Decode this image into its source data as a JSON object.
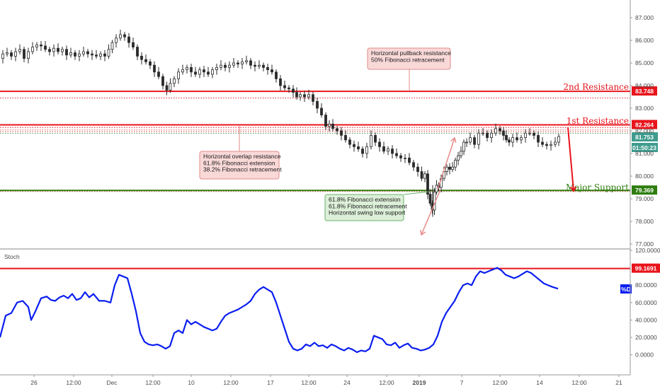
{
  "chart_data": [
    {
      "type": "candlestick",
      "ylim": [
        77.0,
        87.0
      ],
      "y_ticks": [
        "87.000",
        "86.000",
        "85.000",
        "84.000",
        "83.000",
        "82.000",
        "81.000",
        "80.000",
        "79.000",
        "78.000",
        "77.000"
      ],
      "y_tick_values": [
        87,
        86,
        85,
        84,
        83,
        82,
        81,
        80,
        79,
        78,
        77
      ],
      "x_ticks": [
        "26",
        "12:00",
        "Dec",
        "12:00",
        "10",
        "12:00",
        "17",
        "12:00",
        "24",
        "12:00",
        "2019",
        "7",
        "12:00",
        "14",
        "12:00",
        "21"
      ],
      "price_series": [
        [
          0,
          85.2
        ],
        [
          6,
          85.4
        ],
        [
          12,
          85.45
        ],
        [
          18,
          85.3
        ],
        [
          24,
          85.5
        ],
        [
          30,
          85.6
        ],
        [
          36,
          85.2
        ],
        [
          42,
          85.5
        ],
        [
          48,
          85.7
        ],
        [
          54,
          85.8
        ],
        [
          60,
          85.75
        ],
        [
          66,
          85.6
        ],
        [
          72,
          85.5
        ],
        [
          78,
          85.65
        ],
        [
          84,
          85.5
        ],
        [
          90,
          85.6
        ],
        [
          96,
          85.35
        ],
        [
          102,
          85.45
        ],
        [
          108,
          85.3
        ],
        [
          114,
          85.4
        ],
        [
          120,
          85.5
        ],
        [
          126,
          85.4
        ],
        [
          132,
          85.35
        ],
        [
          138,
          85.3
        ],
        [
          144,
          85.4
        ],
        [
          150,
          85.3
        ],
        [
          155,
          85.6
        ],
        [
          160,
          85.9
        ],
        [
          166,
          86.1
        ],
        [
          172,
          86.25
        ],
        [
          178,
          86.15
        ],
        [
          184,
          85.9
        ],
        [
          190,
          85.7
        ],
        [
          196,
          85.3
        ],
        [
          202,
          85.15
        ],
        [
          208,
          85.05
        ],
        [
          214,
          84.9
        ],
        [
          220,
          84.6
        ],
        [
          226,
          84.4
        ],
        [
          232,
          84.0
        ],
        [
          237,
          83.8
        ],
        [
          242,
          84.1
        ],
        [
          248,
          84.3
        ],
        [
          254,
          84.6
        ],
        [
          260,
          84.7
        ],
        [
          266,
          84.8
        ],
        [
          272,
          84.6
        ],
        [
          278,
          84.5
        ],
        [
          284,
          84.7
        ],
        [
          290,
          84.6
        ],
        [
          296,
          84.5
        ],
        [
          302,
          84.7
        ],
        [
          308,
          84.8
        ],
        [
          314,
          84.9
        ],
        [
          320,
          84.8
        ],
        [
          326,
          84.9
        ],
        [
          332,
          85.0
        ],
        [
          338,
          84.95
        ],
        [
          344,
          85.05
        ],
        [
          350,
          85.1
        ],
        [
          356,
          84.9
        ],
        [
          362,
          84.85
        ],
        [
          368,
          84.9
        ],
        [
          374,
          84.8
        ],
        [
          380,
          84.7
        ],
        [
          386,
          84.6
        ],
        [
          392,
          84.3
        ],
        [
          398,
          84.0
        ],
        [
          404,
          83.9
        ],
        [
          410,
          83.85
        ],
        [
          416,
          83.7
        ],
        [
          420,
          83.5
        ],
        [
          426,
          83.6
        ],
        [
          432,
          83.5
        ],
        [
          438,
          83.6
        ],
        [
          444,
          83.3
        ],
        [
          450,
          83.0
        ],
        [
          456,
          82.7
        ],
        [
          462,
          82.2
        ],
        [
          466,
          82.3
        ],
        [
          472,
          82.1
        ],
        [
          478,
          82.0
        ],
        [
          484,
          81.8
        ],
        [
          490,
          81.6
        ],
        [
          496,
          81.4
        ],
        [
          502,
          81.3
        ],
        [
          508,
          81.2
        ],
        [
          514,
          81.0
        ],
        [
          520,
          81.3
        ],
        [
          526,
          81.8
        ],
        [
          532,
          81.5
        ],
        [
          538,
          81.3
        ],
        [
          544,
          81.1
        ],
        [
          550,
          81.2
        ],
        [
          556,
          81.0
        ],
        [
          562,
          80.9
        ],
        [
          568,
          80.8
        ],
        [
          574,
          80.8
        ],
        [
          580,
          80.6
        ],
        [
          586,
          80.4
        ],
        [
          592,
          80.2
        ],
        [
          597,
          79.9
        ],
        [
          601,
          80.1
        ],
        [
          605,
          79.2
        ],
        [
          608,
          78.8
        ],
        [
          611,
          78.5
        ],
        [
          614,
          79.3
        ],
        [
          617,
          79.6
        ],
        [
          620,
          79.5
        ],
        [
          624,
          79.9
        ],
        [
          628,
          80.2
        ],
        [
          632,
          80.4
        ],
        [
          636,
          80.3
        ],
        [
          640,
          80.4
        ],
        [
          644,
          80.7
        ],
        [
          648,
          80.9
        ],
        [
          652,
          81.1
        ],
        [
          656,
          81.5
        ],
        [
          660,
          81.5
        ],
        [
          666,
          81.7
        ],
        [
          672,
          81.4
        ],
        [
          678,
          81.9
        ],
        [
          684,
          81.9
        ],
        [
          690,
          81.7
        ],
        [
          696,
          81.9
        ],
        [
          702,
          82.1
        ],
        [
          708,
          82.0
        ],
        [
          712,
          81.8
        ],
        [
          716,
          81.6
        ],
        [
          720,
          81.5
        ],
        [
          726,
          81.7
        ],
        [
          732,
          81.6
        ],
        [
          738,
          81.7
        ],
        [
          744,
          81.9
        ],
        [
          750,
          81.9
        ],
        [
          756,
          81.8
        ],
        [
          762,
          81.5
        ],
        [
          768,
          81.4
        ],
        [
          774,
          81.35
        ],
        [
          780,
          81.4
        ],
        [
          786,
          81.5
        ],
        [
          790,
          81.75
        ]
      ],
      "levels": [
        {
          "name": "2nd Resistance",
          "value": "83.748",
          "y": 83.748,
          "color": "#e8141c"
        },
        {
          "name": "1st Resistance",
          "value": "82.264",
          "y": 82.264,
          "color": "#e8141c"
        },
        {
          "name": "Major Support",
          "value": "79.369",
          "y": 79.369,
          "color": "#2e7d0e"
        }
      ],
      "dotted_lines": [
        {
          "y": 83.45,
          "color": "#e8141c"
        },
        {
          "y": 82.15,
          "color": "#e8141c"
        },
        {
          "y": 82.04,
          "color": "#d9534f"
        },
        {
          "y": 81.96,
          "color": "#d9534f"
        },
        {
          "y": 81.89,
          "color": "#5b9b5b"
        },
        {
          "y": 79.32,
          "color": "#d9534f"
        }
      ],
      "price_tags": [
        {
          "text": "81.753",
          "y": 81.753,
          "color": "#3f9c8e"
        },
        {
          "text": "01:50:23",
          "y": 81.4,
          "color": "#3f9c8e"
        }
      ],
      "annotations": [
        {
          "id": "pullback",
          "lines": [
            "Horizontal pullback resistance",
            "50% Fibonacci retracement"
          ],
          "fill": "#f9d9d8",
          "stroke": "#e08a8a"
        },
        {
          "id": "overlap",
          "lines": [
            "Horizontal overlap resistance",
            "61.8% Fibonacci extension",
            "38.2% Fibonacci retracement"
          ],
          "fill": "#f9d9d8",
          "stroke": "#e08a8a"
        },
        {
          "id": "support",
          "lines": [
            "61.8% Fibonacci extension",
            "61.8% Fibonacci retracement",
            "Horizontal swing low support"
          ],
          "fill": "#dcefd8",
          "stroke": "#6ab26a"
        }
      ]
    },
    {
      "type": "line",
      "title": "Stoch",
      "series_name": "%D",
      "ylim": [
        -10,
        120
      ],
      "y_ticks": [
        "120.0000",
        "99.1691",
        "80.0000",
        "60.0000",
        "40.0000",
        "20.0000",
        "0.0000"
      ],
      "y_tick_values": [
        120,
        80,
        60,
        40,
        20,
        0
      ],
      "level": {
        "value": "99.1691",
        "y": 99.1691,
        "color": "#e8141c"
      },
      "series": [
        [
          0,
          20
        ],
        [
          8,
          45
        ],
        [
          16,
          48
        ],
        [
          24,
          60
        ],
        [
          32,
          62
        ],
        [
          40,
          55
        ],
        [
          44,
          40
        ],
        [
          50,
          50
        ],
        [
          58,
          65
        ],
        [
          66,
          67
        ],
        [
          72,
          63
        ],
        [
          78,
          62
        ],
        [
          84,
          66
        ],
        [
          90,
          68
        ],
        [
          96,
          65
        ],
        [
          102,
          70
        ],
        [
          108,
          63
        ],
        [
          114,
          65
        ],
        [
          120,
          72
        ],
        [
          126,
          66
        ],
        [
          132,
          70
        ],
        [
          140,
          62
        ],
        [
          148,
          62
        ],
        [
          156,
          60
        ],
        [
          162,
          80
        ],
        [
          168,
          92
        ],
        [
          174,
          90
        ],
        [
          180,
          88
        ],
        [
          186,
          70
        ],
        [
          192,
          50
        ],
        [
          198,
          25
        ],
        [
          204,
          15
        ],
        [
          210,
          12
        ],
        [
          216,
          11
        ],
        [
          222,
          12
        ],
        [
          228,
          10
        ],
        [
          234,
          7
        ],
        [
          240,
          10
        ],
        [
          246,
          25
        ],
        [
          252,
          28
        ],
        [
          258,
          25
        ],
        [
          264,
          40
        ],
        [
          270,
          35
        ],
        [
          276,
          38
        ],
        [
          282,
          35
        ],
        [
          288,
          32
        ],
        [
          294,
          30
        ],
        [
          300,
          28
        ],
        [
          306,
          30
        ],
        [
          312,
          38
        ],
        [
          318,
          45
        ],
        [
          324,
          48
        ],
        [
          330,
          50
        ],
        [
          336,
          52
        ],
        [
          342,
          55
        ],
        [
          348,
          58
        ],
        [
          354,
          62
        ],
        [
          360,
          70
        ],
        [
          366,
          75
        ],
        [
          372,
          78
        ],
        [
          378,
          75
        ],
        [
          384,
          72
        ],
        [
          390,
          60
        ],
        [
          396,
          45
        ],
        [
          402,
          30
        ],
        [
          408,
          15
        ],
        [
          414,
          7
        ],
        [
          420,
          5
        ],
        [
          426,
          7
        ],
        [
          432,
          12
        ],
        [
          438,
          10
        ],
        [
          444,
          14
        ],
        [
          450,
          10
        ],
        [
          456,
          11
        ],
        [
          462,
          8
        ],
        [
          468,
          12
        ],
        [
          474,
          10
        ],
        [
          480,
          7
        ],
        [
          486,
          5
        ],
        [
          492,
          8
        ],
        [
          498,
          6
        ],
        [
          504,
          3
        ],
        [
          510,
          5
        ],
        [
          516,
          4
        ],
        [
          522,
          7
        ],
        [
          528,
          22
        ],
        [
          534,
          20
        ],
        [
          540,
          18
        ],
        [
          546,
          12
        ],
        [
          552,
          11
        ],
        [
          558,
          14
        ],
        [
          564,
          8
        ],
        [
          570,
          11
        ],
        [
          576,
          13
        ],
        [
          582,
          8
        ],
        [
          588,
          7
        ],
        [
          594,
          5
        ],
        [
          600,
          6
        ],
        [
          606,
          8
        ],
        [
          612,
          12
        ],
        [
          618,
          22
        ],
        [
          624,
          38
        ],
        [
          630,
          48
        ],
        [
          636,
          55
        ],
        [
          642,
          62
        ],
        [
          648,
          72
        ],
        [
          654,
          80
        ],
        [
          660,
          82
        ],
        [
          666,
          80
        ],
        [
          672,
          90
        ],
        [
          678,
          96
        ],
        [
          684,
          94
        ],
        [
          690,
          96
        ],
        [
          696,
          98
        ],
        [
          702,
          100
        ],
        [
          708,
          97
        ],
        [
          714,
          92
        ],
        [
          720,
          90
        ],
        [
          726,
          88
        ],
        [
          732,
          90
        ],
        [
          738,
          93
        ],
        [
          744,
          96
        ],
        [
          750,
          94
        ],
        [
          756,
          90
        ],
        [
          762,
          86
        ],
        [
          768,
          82
        ],
        [
          774,
          80
        ],
        [
          780,
          78
        ],
        [
          788,
          76
        ]
      ]
    }
  ],
  "labels": {
    "stoch_title": "Stoch",
    "d_badge": "%D"
  },
  "colors": {
    "candle_up": "#2a2a2a",
    "candle_up_fill": "#ffffff",
    "candle_down": "#2a2a2a",
    "stoch_line": "#0a1ef0",
    "resistance": "#e8141c",
    "support": "#2e7d0e",
    "fib_arrow": "#e88a8a"
  }
}
